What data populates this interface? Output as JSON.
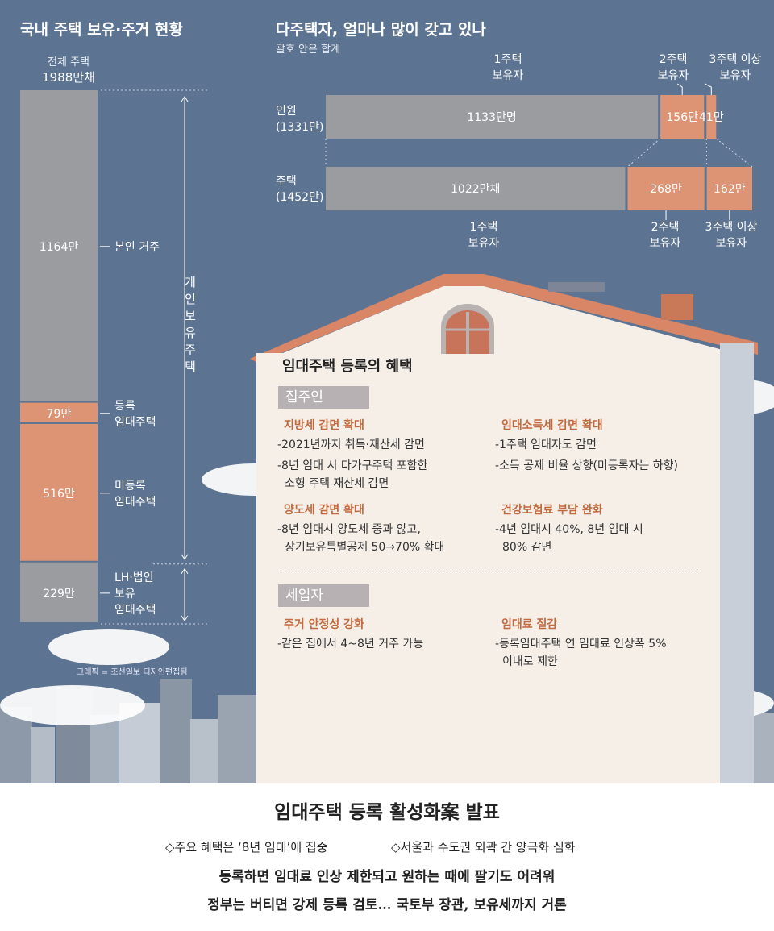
{
  "left_chart": {
    "title": "국내 주택 보유·주거 현황",
    "total_label": "전체 주택",
    "total_value": "1988만채",
    "bracket_label": [
      "개",
      "인",
      "보",
      "유",
      "주",
      "택"
    ]
  },
  "right_chart": {
    "title": "다주택자, 얼마나 많이 갖고 있나",
    "subtitle": "괄호 안은 합계",
    "row1_label": "인원",
    "row1_total": "(1331만)",
    "row2_label": "주택",
    "row2_total": "(1452만)",
    "top_cat1": [
      "1주택",
      "보유자"
    ],
    "top_cat2": [
      "2주택",
      "보유자"
    ],
    "top_cat3": [
      "3주택 이상",
      "보유자"
    ],
    "bottom_cat1": [
      "1주택",
      "보유자"
    ],
    "bottom_cat2": [
      "2주택",
      "보유자"
    ],
    "bottom_cat3": [
      "3주택 이상",
      "보유자"
    ]
  },
  "chart_data": [
    {
      "type": "bar",
      "title": "국내 주택 보유·주거 현황",
      "stacked": true,
      "segments": [
        {
          "label_lines": [
            "본인 거주"
          ],
          "display": "1164만",
          "value": 1164,
          "color": "#9b9c9f"
        },
        {
          "label_lines": [
            "등록",
            "임대주택"
          ],
          "display": "79만",
          "value": 79,
          "color": "#dd9474"
        },
        {
          "label_lines": [
            "미등록",
            "임대주택"
          ],
          "display": "516만",
          "value": 516,
          "color": "#dd9474"
        },
        {
          "label_lines": [
            "LH·법인",
            "보유",
            "임대주택"
          ],
          "display": "229만",
          "value": 229,
          "color": "#9b9c9f"
        }
      ]
    },
    {
      "type": "bar",
      "title": "다주택자, 얼마나 많이 갖고 있나",
      "orientation": "horizontal",
      "stacked": true,
      "rows": [
        {
          "name": "인원",
          "values": [
            1133,
            156,
            41
          ],
          "display": [
            "1133만명",
            "156만",
            "41만"
          ],
          "colors": [
            "#9b9c9f",
            "#dd9474",
            "#dd9474"
          ]
        },
        {
          "name": "주택",
          "values": [
            1022,
            268,
            162
          ],
          "display": [
            "1022만채",
            "268만",
            "162만"
          ],
          "colors": [
            "#9b9c9f",
            "#dd9474",
            "#dd9474"
          ]
        }
      ]
    }
  ],
  "benefits": {
    "title": "임대주택 등록의 혜택",
    "landlord_tag": "집주인",
    "tenant_tag": "세입자",
    "b1_head": "지방세 감면 확대",
    "b1_line1": "-2021년까지 취득·재산세 감면",
    "b1_line2": "-8년 임대 시 다가구주택 포함한",
    "b1_line3": "소형 주택 재산세 감면",
    "b2_head": "임대소득세 감면 확대",
    "b2_line1": "-1주택 임대자도 감면",
    "b2_line2": "-소득 공제 비율 상향(미등록자는 하향)",
    "b3_head": "양도세 감면 확대",
    "b3_line1": "-8년 임대시 양도세 중과 않고,",
    "b3_line2": "장기보유특별공제 50→70% 확대",
    "b4_head": "건강보험료 부담 완화",
    "b4_line1": "-4년 임대시 40%, 8년 임대 시",
    "b4_line2": "80% 감면",
    "b5_head": "주거 안정성 강화",
    "b5_line1": "-같은 집에서 4~8년 거주 가능",
    "b6_head": "임대료 절감",
    "b6_line1": "-등록임대주택 연 임대료 인상폭 5%",
    "b6_line2": "이내로 제한"
  },
  "credit": "그래픽 = 조선일보 디자인편집팀",
  "footer": {
    "headline": "임대주택 등록 활성화案 발표",
    "bullet1": "◇주요 혜택은 ‘8년 임대’에 집중",
    "bullet2": "◇서울과 수도권 외곽 간 양극화 심화",
    "line1": "등록하면 임대료 인상 제한되고 원하는 때에 팔기도 어려워",
    "line2": "정부는 버티면 강제 등록 검토… 국토부 장관, 보유세까지 거론"
  }
}
